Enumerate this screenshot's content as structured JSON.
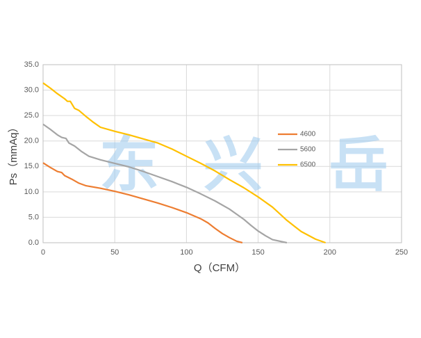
{
  "chart_data": {
    "type": "line",
    "xlabel": "Q（CFM）",
    "ylabel": "Ps（mmAq）",
    "watermark": [
      "东",
      "兴",
      "岳"
    ],
    "xlim": [
      0,
      250
    ],
    "xticks": [
      0,
      50,
      100,
      150,
      200,
      250
    ],
    "ylim": [
      0,
      35
    ],
    "yticks": [
      {
        "value": 0,
        "label": "0.0"
      },
      {
        "value": 5,
        "label": "5.0"
      },
      {
        "value": 10,
        "label": "10.0"
      },
      {
        "value": 15,
        "label": "15.0"
      },
      {
        "value": 20,
        "label": "20.0"
      },
      {
        "value": 25,
        "label": "25.0"
      },
      {
        "value": 30,
        "label": "30.0"
      },
      {
        "value": 35,
        "label": "35.0"
      }
    ],
    "grid": true,
    "legend": "right",
    "series": [
      {
        "name": "4600",
        "color": "#ED7D31",
        "x": [
          0,
          5,
          10,
          13,
          15,
          20,
          25,
          30,
          40,
          50,
          60,
          70,
          80,
          90,
          100,
          110,
          115,
          120,
          125,
          130,
          135,
          139
        ],
        "values": [
          15.7,
          14.8,
          14.0,
          13.8,
          13.2,
          12.5,
          11.7,
          11.2,
          10.7,
          10.1,
          9.4,
          8.6,
          7.8,
          6.9,
          5.9,
          4.7,
          3.9,
          2.8,
          1.8,
          1.0,
          0.3,
          0
        ]
      },
      {
        "name": "5600",
        "color": "#A5A5A5",
        "x": [
          0,
          5,
          10,
          13,
          16,
          18,
          22,
          27,
          32,
          40,
          50,
          60,
          70,
          80,
          90,
          100,
          110,
          120,
          130,
          135,
          140,
          145,
          150,
          155,
          160,
          170
        ],
        "values": [
          23.3,
          22.3,
          21.2,
          20.7,
          20.5,
          19.6,
          19.0,
          17.9,
          17.0,
          16.3,
          15.6,
          14.9,
          14.0,
          13.0,
          12.0,
          10.9,
          9.6,
          8.2,
          6.6,
          5.6,
          4.6,
          3.4,
          2.3,
          1.4,
          0.6,
          0
        ]
      },
      {
        "name": "6500",
        "color": "#FFC000",
        "x": [
          0,
          5,
          10,
          15,
          17,
          19,
          22,
          25,
          30,
          35,
          40,
          50,
          60,
          70,
          80,
          90,
          100,
          110,
          120,
          130,
          140,
          150,
          160,
          165,
          170,
          175,
          180,
          190,
          197
        ],
        "values": [
          31.4,
          30.4,
          29.3,
          28.3,
          27.8,
          27.8,
          26.4,
          26.0,
          24.8,
          23.7,
          22.7,
          21.9,
          21.2,
          20.4,
          19.6,
          18.4,
          17.0,
          15.6,
          14.1,
          12.4,
          10.8,
          9.0,
          7.0,
          5.7,
          4.4,
          3.3,
          2.2,
          0.7,
          0
        ]
      }
    ]
  }
}
